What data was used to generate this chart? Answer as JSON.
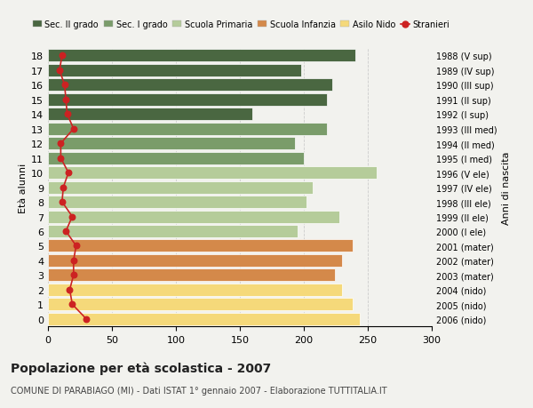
{
  "ages": [
    18,
    17,
    16,
    15,
    14,
    13,
    12,
    11,
    10,
    9,
    8,
    7,
    6,
    5,
    4,
    3,
    2,
    1,
    0
  ],
  "anni_nascita": [
    "1988 (V sup)",
    "1989 (IV sup)",
    "1990 (III sup)",
    "1991 (II sup)",
    "1992 (I sup)",
    "1993 (III med)",
    "1994 (II med)",
    "1995 (I med)",
    "1996 (V ele)",
    "1997 (IV ele)",
    "1998 (III ele)",
    "1999 (II ele)",
    "2000 (I ele)",
    "2001 (mater)",
    "2002 (mater)",
    "2003 (mater)",
    "2004 (nido)",
    "2005 (nido)",
    "2006 (nido)"
  ],
  "bar_values": [
    240,
    198,
    222,
    218,
    160,
    218,
    193,
    200,
    257,
    207,
    202,
    228,
    195,
    238,
    230,
    224,
    230,
    238,
    244
  ],
  "bar_colors": [
    "#4a6741",
    "#4a6741",
    "#4a6741",
    "#4a6741",
    "#4a6741",
    "#7a9c6a",
    "#7a9c6a",
    "#7a9c6a",
    "#b5cc9a",
    "#b5cc9a",
    "#b5cc9a",
    "#b5cc9a",
    "#b5cc9a",
    "#d4894a",
    "#d4894a",
    "#d4894a",
    "#f5d97a",
    "#f5d97a",
    "#f5d97a"
  ],
  "stranieri_values": [
    11,
    9,
    13,
    14,
    15,
    20,
    10,
    10,
    16,
    12,
    11,
    19,
    14,
    22,
    20,
    20,
    17,
    19,
    30
  ],
  "legend_labels": [
    "Sec. II grado",
    "Sec. I grado",
    "Scuola Primaria",
    "Scuola Infanzia",
    "Asilo Nido",
    "Stranieri"
  ],
  "legend_colors": [
    "#4a6741",
    "#7a9c6a",
    "#b5cc9a",
    "#d4894a",
    "#f5d97a",
    "#cc2222"
  ],
  "title": "Popolazione per età scolastica - 2007",
  "subtitle": "COMUNE DI PARABIAGO (MI) - Dati ISTAT 1° gennaio 2007 - Elaborazione TUTTITALIA.IT",
  "ylabel_left": "Età alunni",
  "ylabel_right": "Anni di nascita",
  "xlim": [
    0,
    300
  ],
  "xticks": [
    0,
    50,
    100,
    150,
    200,
    250,
    300
  ],
  "bg_color": "#f2f2ee",
  "grid_color": "#cccccc"
}
